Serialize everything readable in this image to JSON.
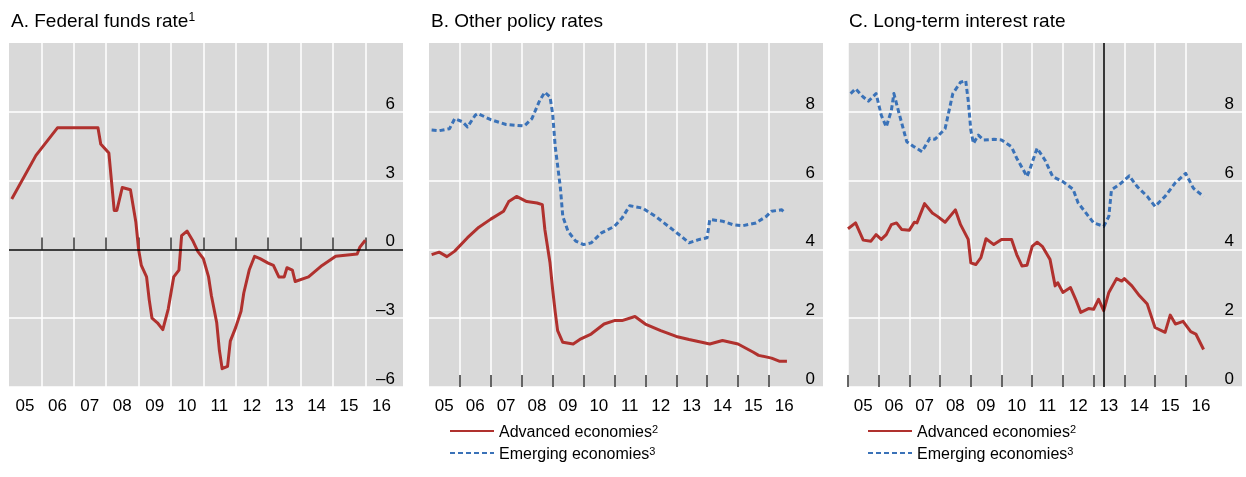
{
  "chart_data": [
    {
      "type": "line",
      "title": "A. Federal funds rate$^{1}$",
      "xlim": [
        "2005-01",
        "2017-03"
      ],
      "ylim": [
        -6,
        9
      ],
      "grid": true,
      "legend": false,
      "marker": "none",
      "xticks": [
        {
          "value": "2006",
          "label": null
        },
        {
          "value": "2007",
          "label": null
        },
        {
          "value": "2008",
          "label": null
        },
        {
          "value": "2009",
          "label": null
        },
        {
          "value": "2010",
          "label": null
        },
        {
          "value": "2011",
          "label": null
        },
        {
          "value": "2012",
          "label": null
        },
        {
          "value": "2013",
          "label": null
        },
        {
          "value": "2014",
          "label": null
        },
        {
          "value": "2015",
          "label": null
        },
        {
          "value": "2016",
          "label": null
        },
        {
          "value": "2005-07",
          "label": "05"
        },
        {
          "value": "2006-07",
          "label": "06"
        },
        {
          "value": "2007-07",
          "label": "07"
        },
        {
          "value": "2008-07",
          "label": "08"
        },
        {
          "value": "2009-07",
          "label": "09"
        },
        {
          "value": "2010-07",
          "label": "10"
        },
        {
          "value": "2011-07",
          "label": "11"
        },
        {
          "value": "2012-07",
          "label": "12"
        },
        {
          "value": "2013-07",
          "label": "13"
        },
        {
          "value": "2014-07",
          "label": "14"
        },
        {
          "value": "2015-07",
          "label": "15"
        },
        {
          "value": "2016-07",
          "label": "16"
        }
      ],
      "yticks": [
        {
          "value": -6,
          "label": "–6"
        },
        {
          "value": -3,
          "label": "–3"
        },
        0,
        3,
        6
      ],
      "ref_lines": [
        {
          "axis": "y",
          "value": 0,
          "label": null,
          "color": "#000000"
        }
      ],
      "series": [
        {
          "color": "#b0312e",
          "line_style": "solid",
          "x": [
            "2005-02",
            "2005-11",
            "2006-07",
            "2007-10",
            "2007-11",
            "2008-02",
            "2008-03",
            "2008-04",
            "2008-05",
            "2008-07",
            "2008-10",
            "2008-12",
            "2009-01",
            "2009-02",
            "2009-04",
            "2009-05",
            "2009-06",
            "2009-08",
            "2009-10",
            "2009-12",
            "2010-02",
            "2010-04",
            "2010-05",
            "2010-07",
            "2010-09",
            "2010-11",
            "2011-01",
            "2011-03",
            "2011-04",
            "2011-06",
            "2011-07",
            "2011-08",
            "2011-10",
            "2011-11",
            "2012-01",
            "2012-03",
            "2012-04",
            "2012-06",
            "2012-08",
            "2012-10",
            "2013-01",
            "2013-03",
            "2013-05",
            "2013-07",
            "2013-08",
            "2013-10",
            "2013-11",
            "2014-04",
            "2014-09",
            "2015-02",
            "2015-10",
            "2015-11",
            "2016-01"
          ],
          "values": [
            2.2,
            4.1,
            5.3,
            5.3,
            4.6,
            4.2,
            3.0,
            1.7,
            1.7,
            2.7,
            2.6,
            1.2,
            0.0,
            -0.7,
            -1.2,
            -2.2,
            -3.0,
            -3.2,
            -3.5,
            -2.6,
            -1.2,
            -0.9,
            0.6,
            0.8,
            0.4,
            -0.1,
            -0.4,
            -1.2,
            -2.0,
            -3.2,
            -4.4,
            -5.2,
            -5.1,
            -4.0,
            -3.4,
            -2.7,
            -1.9,
            -0.9,
            -0.3,
            -0.4,
            -0.6,
            -0.7,
            -1.2,
            -1.2,
            -0.8,
            -0.9,
            -1.4,
            -1.2,
            -0.7,
            -0.3,
            -0.2,
            0.1,
            0.4
          ]
        }
      ]
    },
    {
      "type": "line",
      "title": "B. Other policy rates",
      "xlim": [
        "2005-01",
        "2017-10"
      ],
      "ylim": [
        0,
        10
      ],
      "grid": true,
      "legend": "bottom",
      "marker": "none",
      "xticks": [
        {
          "value": "2006",
          "label": null
        },
        {
          "value": "2007",
          "label": null
        },
        {
          "value": "2008",
          "label": null
        },
        {
          "value": "2009",
          "label": null
        },
        {
          "value": "2010",
          "label": null
        },
        {
          "value": "2011",
          "label": null
        },
        {
          "value": "2012",
          "label": null
        },
        {
          "value": "2013",
          "label": null
        },
        {
          "value": "2014",
          "label": null
        },
        {
          "value": "2015",
          "label": null
        },
        {
          "value": "2016",
          "label": null
        },
        {
          "value": "2005-07",
          "label": "05"
        },
        {
          "value": "2006-07",
          "label": "06"
        },
        {
          "value": "2007-07",
          "label": "07"
        },
        {
          "value": "2008-07",
          "label": "08"
        },
        {
          "value": "2009-07",
          "label": "09"
        },
        {
          "value": "2010-07",
          "label": "10"
        },
        {
          "value": "2011-07",
          "label": "11"
        },
        {
          "value": "2012-07",
          "label": "12"
        },
        {
          "value": "2013-07",
          "label": "13"
        },
        {
          "value": "2014-07",
          "label": "14"
        },
        {
          "value": "2015-07",
          "label": "15"
        },
        {
          "value": "2016-07",
          "label": "16"
        }
      ],
      "yticks": [
        0,
        2,
        4,
        6,
        8
      ],
      "series": [
        {
          "name": "Advanced economies$^{2}$",
          "color": "#b0312e",
          "line_style": "solid",
          "x": [
            "2005-02",
            "2005-05",
            "2005-08",
            "2005-11",
            "2006-04",
            "2006-08",
            "2007-01",
            "2007-06",
            "2007-08",
            "2007-11",
            "2008-03",
            "2008-07",
            "2008-09",
            "2008-10",
            "2008-12",
            "2009-01",
            "2009-02",
            "2009-03",
            "2009-05",
            "2009-09",
            "2009-12",
            "2010-04",
            "2010-09",
            "2011-01",
            "2011-04",
            "2011-09",
            "2012-01",
            "2012-07",
            "2013-01",
            "2013-06",
            "2014-02",
            "2014-07",
            "2015-01",
            "2015-07",
            "2015-09",
            "2016-02",
            "2016-05",
            "2016-08"
          ],
          "values": [
            3.85,
            3.92,
            3.79,
            3.95,
            4.34,
            4.62,
            4.88,
            5.11,
            5.39,
            5.54,
            5.39,
            5.35,
            5.3,
            4.58,
            3.61,
            2.84,
            2.17,
            1.64,
            1.3,
            1.25,
            1.4,
            1.54,
            1.83,
            1.93,
            1.93,
            2.05,
            1.83,
            1.64,
            1.47,
            1.38,
            1.25,
            1.35,
            1.25,
            1.01,
            0.92,
            0.84,
            0.75,
            0.75
          ]
        },
        {
          "name": "Emerging economies$^{3}$",
          "color": "#3a72b8",
          "line_style": "dashed",
          "x": [
            "2005-02",
            "2005-05",
            "2005-09",
            "2005-11",
            "2006-02",
            "2006-04",
            "2006-07",
            "2006-08",
            "2007-01",
            "2007-07",
            "2008-02",
            "2008-05",
            "2008-08",
            "2008-10",
            "2008-12",
            "2009-01",
            "2009-02",
            "2009-04",
            "2009-05",
            "2009-07",
            "2009-10",
            "2010-01",
            "2010-04",
            "2010-08",
            "2011-01",
            "2011-04",
            "2011-07",
            "2011-12",
            "2012-05",
            "2012-10",
            "2013-03",
            "2013-06",
            "2013-10",
            "2014-01",
            "2014-02",
            "2014-07",
            "2014-11",
            "2015-03",
            "2015-08",
            "2015-12",
            "2016-02",
            "2016-06",
            "2016-07"
          ],
          "values": [
            7.47,
            7.45,
            7.51,
            7.8,
            7.71,
            7.56,
            7.9,
            7.95,
            7.77,
            7.63,
            7.59,
            7.8,
            8.33,
            8.57,
            8.43,
            7.95,
            6.98,
            5.83,
            4.96,
            4.53,
            4.24,
            4.14,
            4.19,
            4.48,
            4.67,
            4.91,
            5.27,
            5.2,
            4.96,
            4.67,
            4.38,
            4.19,
            4.29,
            4.34,
            4.87,
            4.82,
            4.72,
            4.69,
            4.77,
            4.96,
            5.11,
            5.15,
            5.08
          ]
        }
      ]
    },
    {
      "type": "line",
      "title": "C. Long-term interest rate",
      "xlim": [
        "2005-01",
        "2017-11"
      ],
      "ylim": [
        0,
        10
      ],
      "grid": true,
      "legend": "bottom",
      "marker": "none",
      "xticks": [
        {
          "value": "2005",
          "label": null
        },
        {
          "value": "2006",
          "label": null
        },
        {
          "value": "2007",
          "label": null
        },
        {
          "value": "2008",
          "label": null
        },
        {
          "value": "2009",
          "label": null
        },
        {
          "value": "2010",
          "label": null
        },
        {
          "value": "2011",
          "label": null
        },
        {
          "value": "2012",
          "label": null
        },
        {
          "value": "2013",
          "label": null
        },
        {
          "value": "2014",
          "label": null
        },
        {
          "value": "2015",
          "label": null
        },
        {
          "value": "2016",
          "label": null
        },
        {
          "value": "2005-07",
          "label": "05"
        },
        {
          "value": "2006-07",
          "label": "06"
        },
        {
          "value": "2007-07",
          "label": "07"
        },
        {
          "value": "2008-07",
          "label": "08"
        },
        {
          "value": "2009-07",
          "label": "09"
        },
        {
          "value": "2010-07",
          "label": "10"
        },
        {
          "value": "2011-07",
          "label": "11"
        },
        {
          "value": "2012-07",
          "label": "12"
        },
        {
          "value": "2013-07",
          "label": "13"
        },
        {
          "value": "2014-07",
          "label": "14"
        },
        {
          "value": "2015-07",
          "label": "15"
        },
        {
          "value": "2016-07",
          "label": "16"
        }
      ],
      "yticks": [
        0,
        2,
        4,
        6,
        8
      ],
      "ref_lines": [
        {
          "axis": "x",
          "value": "2013-05",
          "label": null,
          "color": "#000000"
        }
      ],
      "series": [
        {
          "name": "Advanced economies$^{2}$",
          "color": "#b0312e",
          "line_style": "solid",
          "x": [
            "2005-01",
            "2005-04",
            "2005-07",
            "2005-10",
            "2005-12",
            "2006-02",
            "2006-04",
            "2006-06",
            "2006-08",
            "2006-10",
            "2007-01",
            "2007-03",
            "2007-04",
            "2007-07",
            "2007-10",
            "2007-12",
            "2008-03",
            "2008-07",
            "2008-09",
            "2008-12",
            "2009-01",
            "2009-03",
            "2009-05",
            "2009-07",
            "2009-10",
            "2010-01",
            "2010-05",
            "2010-07",
            "2010-09",
            "2010-11",
            "2011-01",
            "2011-03",
            "2011-05",
            "2011-08",
            "2011-10",
            "2011-11",
            "2012-01",
            "2012-04",
            "2012-06",
            "2012-08",
            "2012-11",
            "2013-01",
            "2013-03",
            "2013-05",
            "2013-07",
            "2013-10",
            "2013-12",
            "2014-01",
            "2014-04",
            "2014-07",
            "2014-10",
            "2015-01",
            "2015-05",
            "2015-07",
            "2015-09",
            "2015-12",
            "2016-03",
            "2016-05",
            "2016-08"
          ],
          "values": [
            4.6,
            4.77,
            4.27,
            4.24,
            4.43,
            4.29,
            4.43,
            4.72,
            4.77,
            4.58,
            4.56,
            4.79,
            4.77,
            5.33,
            5.06,
            4.96,
            4.79,
            5.15,
            4.72,
            4.29,
            3.61,
            3.56,
            3.76,
            4.31,
            4.14,
            4.29,
            4.29,
            3.85,
            3.52,
            3.54,
            4.09,
            4.21,
            4.09,
            3.71,
            2.94,
            3.03,
            2.75,
            2.89,
            2.55,
            2.17,
            2.28,
            2.26,
            2.55,
            2.22,
            2.75,
            3.15,
            3.08,
            3.15,
            2.94,
            2.65,
            2.41,
            1.73,
            1.59,
            2.09,
            1.83,
            1.91,
            1.61,
            1.54,
            1.09
          ]
        },
        {
          "name": "Emerging economies$^{3}$",
          "color": "#3a72b8",
          "line_style": "dashed",
          "x": [
            "2005-02",
            "2005-04",
            "2005-07",
            "2005-09",
            "2005-12",
            "2006-02",
            "2006-04",
            "2006-06",
            "2006-07",
            "2006-09",
            "2006-12",
            "2007-03",
            "2007-06",
            "2007-09",
            "2007-11",
            "2008-03",
            "2008-06",
            "2008-09",
            "2008-11",
            "2008-12",
            "2009-01",
            "2009-02",
            "2009-04",
            "2009-06",
            "2009-10",
            "2010-01",
            "2010-05",
            "2010-07",
            "2010-11",
            "2010-12",
            "2011-03",
            "2011-06",
            "2011-09",
            "2012-01",
            "2012-05",
            "2012-07",
            "2012-10",
            "2013-01",
            "2013-05",
            "2013-07",
            "2013-08",
            "2013-11",
            "2014-03",
            "2014-06",
            "2014-10",
            "2015-01",
            "2015-05",
            "2015-09",
            "2016-01",
            "2016-04",
            "2016-08"
          ],
          "values": [
            8.53,
            8.67,
            8.43,
            8.31,
            8.53,
            7.9,
            7.56,
            8.04,
            8.53,
            7.95,
            7.13,
            6.98,
            6.84,
            7.23,
            7.2,
            7.51,
            8.53,
            8.86,
            8.91,
            8.33,
            7.47,
            7.08,
            7.32,
            7.18,
            7.2,
            7.18,
            6.98,
            6.65,
            6.12,
            6.31,
            6.94,
            6.6,
            6.12,
            5.97,
            5.75,
            5.35,
            5.06,
            4.77,
            4.67,
            4.96,
            5.73,
            5.88,
            6.14,
            5.83,
            5.54,
            5.25,
            5.54,
            5.94,
            6.21,
            5.78,
            5.54
          ]
        }
      ]
    }
  ]
}
